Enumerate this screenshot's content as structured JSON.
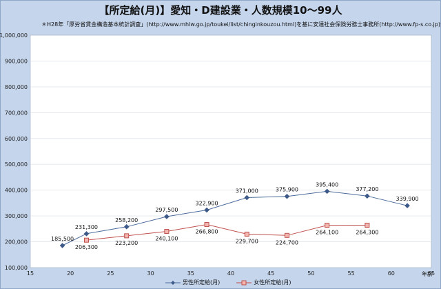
{
  "chart_data": {
    "type": "line",
    "title": "【所定給(月)】愛知・D建設業・人数規模10～99人",
    "subtitle": "＊H28年「厚労省賃金構造基本統計調査」(http://www.mhlw.go.jp/toukei/list/chinginkouzou.html)を基に安達社会保険労務士事務所(http://www.fp-s.co.jp)が作成",
    "xlabel": "年齢",
    "ylabel": "",
    "xlim": [
      15,
      65
    ],
    "ylim": [
      100000,
      1000000
    ],
    "xticks": [
      "15",
      "20",
      "25",
      "30",
      "35",
      "40",
      "45",
      "50",
      "55",
      "60",
      "65"
    ],
    "yticks": [
      "100,000",
      "200,000",
      "300,000",
      "400,000",
      "500,000",
      "600,000",
      "700,000",
      "800,000",
      "900,000",
      "1,000,000"
    ],
    "grid": "horizontal",
    "legend_position": "bottom",
    "series": [
      {
        "name": "男性所定給(月)",
        "color": "#4a6a9a",
        "marker": "diamond",
        "x": [
          19,
          22,
          27,
          32,
          37,
          42,
          47,
          52,
          57,
          62
        ],
        "values": [
          185500,
          231300,
          258200,
          297500,
          322900,
          371000,
          375900,
          395400,
          377200,
          339900
        ],
        "labels": [
          "185,500",
          "231,300",
          "258,200",
          "297,500",
          "322,900",
          "371,000",
          "375,900",
          "395,400",
          "377,200",
          "339,900"
        ]
      },
      {
        "name": "女性所定給(月)",
        "color": "#c0504d",
        "marker": "square",
        "x": [
          22,
          27,
          32,
          37,
          42,
          47,
          52,
          57
        ],
        "values": [
          206300,
          223200,
          240100,
          266800,
          229700,
          224700,
          264100,
          264300
        ],
        "labels": [
          "206,300",
          "223,200",
          "240,100",
          "266,800",
          "229,700",
          "224,700",
          "264,100",
          "264,300"
        ]
      }
    ]
  }
}
